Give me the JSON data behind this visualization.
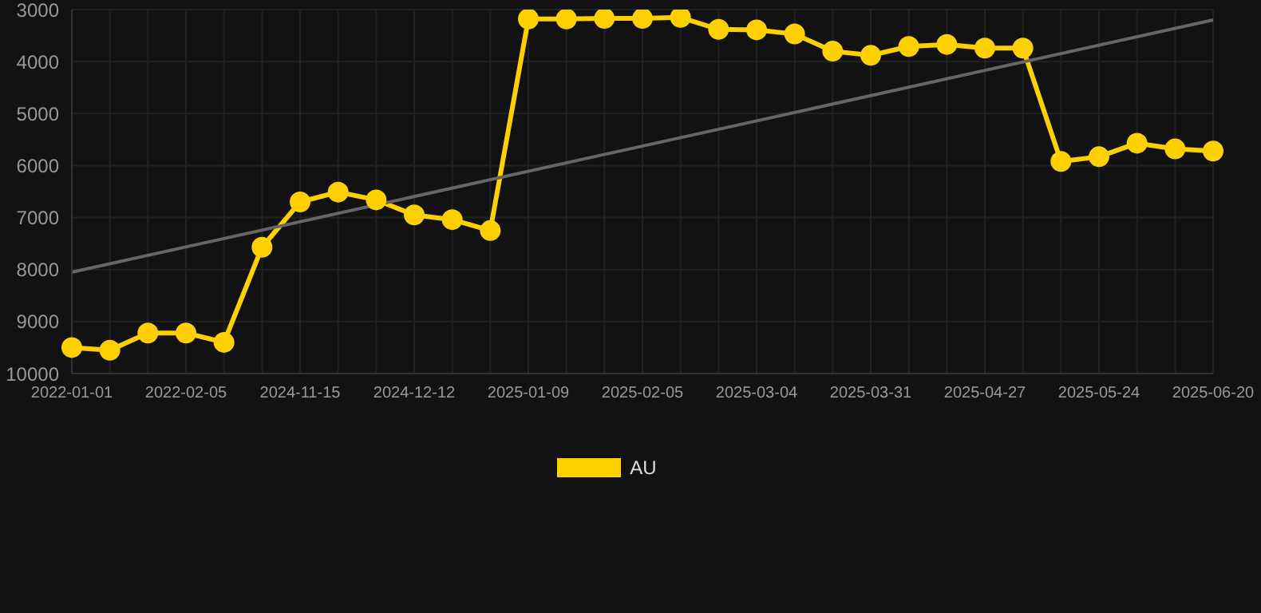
{
  "chart_data": {
    "type": "line",
    "categories": [
      "2022-01-01",
      null,
      null,
      "2022-02-05",
      null,
      null,
      "2024-11-15",
      null,
      null,
      "2024-12-12",
      null,
      null,
      "2025-01-09",
      null,
      null,
      "2025-02-05",
      null,
      null,
      "2025-03-04",
      null,
      null,
      "2025-03-31",
      null,
      null,
      "2025-04-27",
      null,
      null,
      "2025-05-24",
      null,
      null,
      "2025-06-20"
    ],
    "series": [
      {
        "name": "AU",
        "color": "#ffd000",
        "values": [
          9500,
          9550,
          9220,
          9220,
          9400,
          7570,
          6700,
          6510,
          6660,
          6950,
          7040,
          7250,
          3180,
          3180,
          3170,
          3170,
          3150,
          3380,
          3390,
          3470,
          3800,
          3880,
          3710,
          3670,
          3740,
          3740,
          5920,
          5830,
          5570,
          5680,
          5720
        ]
      },
      {
        "type": "line",
        "color": "#666666",
        "marker": "none",
        "values": [
          8050,
          null,
          null,
          null,
          null,
          null,
          null,
          null,
          null,
          null,
          null,
          null,
          null,
          null,
          null,
          null,
          null,
          null,
          null,
          null,
          null,
          null,
          null,
          null,
          null,
          null,
          null,
          null,
          null,
          null,
          3200
        ]
      }
    ],
    "ylim": [
      10000,
      3000
    ],
    "yticks": [
      3000,
      4000,
      5000,
      6000,
      7000,
      8000,
      9000,
      10000
    ],
    "grid": true,
    "legend": "bottom",
    "marker": "circle",
    "line_style": "solid"
  }
}
